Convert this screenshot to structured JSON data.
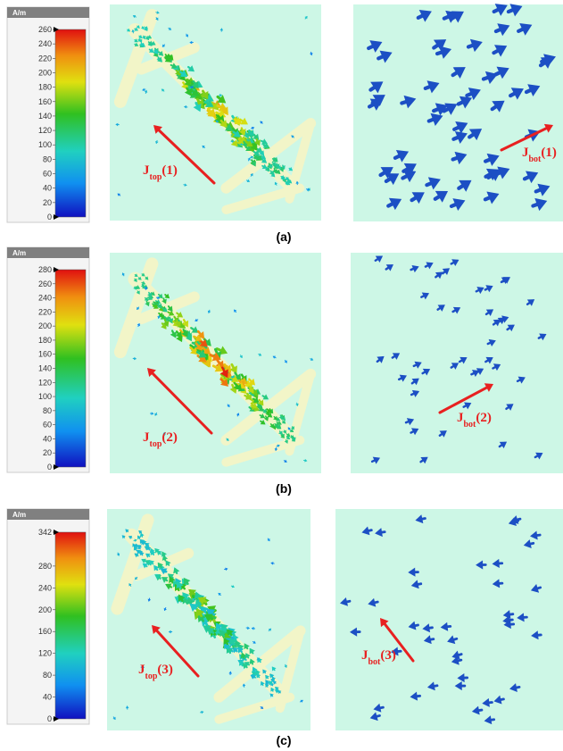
{
  "panels": [
    {
      "caption": "(a)",
      "colorbar": {
        "unit": "A/m",
        "ticks": [
          0,
          20,
          40,
          60,
          80,
          100,
          120,
          140,
          160,
          180,
          200,
          220,
          240,
          260
        ]
      },
      "top_label": {
        "symbol": "J",
        "subscript": "top",
        "index": "(1)"
      },
      "bottom_label": {
        "symbol": "J",
        "subscript": "bot",
        "index": "(1)"
      }
    },
    {
      "caption": "(b)",
      "colorbar": {
        "unit": "A/m",
        "ticks": [
          0,
          20,
          40,
          60,
          80,
          100,
          120,
          140,
          160,
          180,
          200,
          220,
          240,
          260,
          280
        ]
      },
      "top_label": {
        "symbol": "J",
        "subscript": "top",
        "index": "(2)"
      },
      "bottom_label": {
        "symbol": "J",
        "subscript": "bot",
        "index": "(2)"
      }
    },
    {
      "caption": "(c)",
      "colorbar": {
        "unit": "A/m",
        "ticks": [
          0,
          40,
          80,
          120,
          160,
          200,
          240,
          280,
          342
        ]
      },
      "top_label": {
        "symbol": "J",
        "subscript": "top",
        "index": "(3)"
      },
      "bottom_label": {
        "symbol": "J",
        "subscript": "bot",
        "index": "(3)"
      }
    }
  ]
}
